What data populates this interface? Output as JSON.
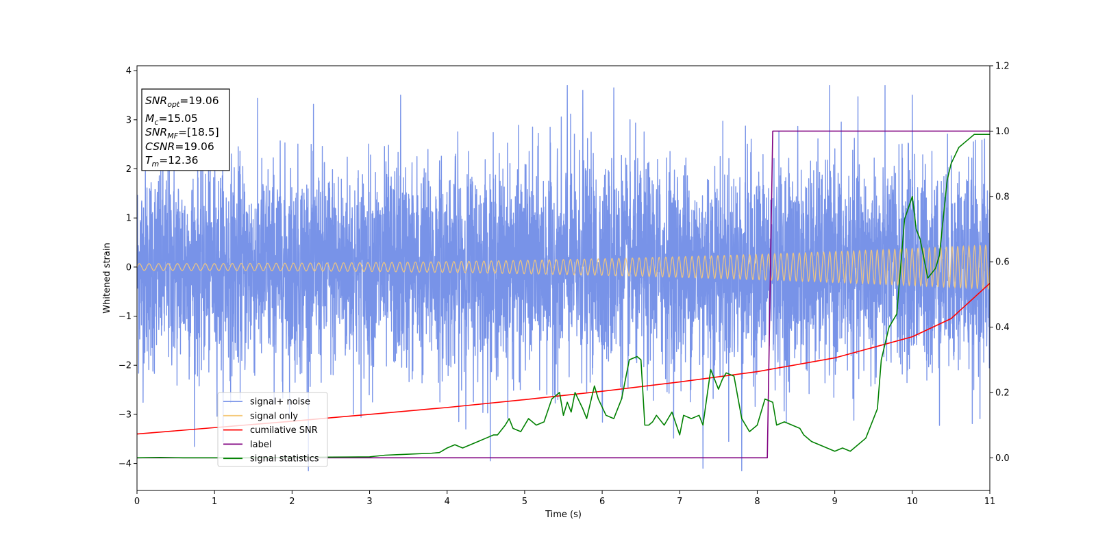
{
  "chart_data": {
    "type": "line",
    "xlabel": "Time (s)",
    "ylabel": "Whitened strain",
    "xlim": [
      0,
      11
    ],
    "ylim": [
      -4.55,
      4.1
    ],
    "y2lim": [
      -0.1,
      1.2
    ],
    "xticks": [
      0,
      1,
      2,
      3,
      4,
      5,
      6,
      7,
      8,
      9,
      10,
      11
    ],
    "yticks": [
      -4,
      -3,
      -2,
      -1,
      0,
      1,
      2,
      3,
      4
    ],
    "y2ticks": [
      "0.0",
      "0.2",
      "0.4",
      "0.6",
      "0.8",
      "1.0",
      "1.2"
    ],
    "grid": false,
    "legend_position": "lower-left",
    "annotation": [
      {
        "name": "SNR",
        "sub": "opt",
        "value": "=19.06"
      },
      {
        "name": "M",
        "sub": "c",
        "value": "=15.05"
      },
      {
        "name": "SNR",
        "sub": "MF",
        "value": "=[18.5]"
      },
      {
        "name": "CSNR",
        "sub": "",
        "value": "=19.06"
      },
      {
        "name": "T",
        "sub": "m",
        "value": "=12.36"
      }
    ],
    "series": [
      {
        "name": "signal+ noise",
        "color": "#7893e8",
        "axis": "left",
        "kind": "noise",
        "approx_std": 1.05,
        "approx_range": [
          -4.15,
          3.7
        ],
        "notable_peaks": [
          [
            3.4,
            3.5
          ],
          [
            5.55,
            3.7
          ],
          [
            5.75,
            3.6
          ],
          [
            6.15,
            3.65
          ],
          [
            7.3,
            -4.1
          ],
          [
            7.8,
            -4.15
          ],
          [
            10.0,
            3.5
          ]
        ]
      },
      {
        "name": "signal only",
        "color": "#f5c97a",
        "axis": "left",
        "kind": "chirp",
        "amplitude_start": 0.07,
        "amplitude_end": 0.45,
        "frequency_start_hz": 8,
        "frequency_end_hz": 14
      },
      {
        "name": "cumilative SNR",
        "color": "#ff0000",
        "axis": "left",
        "x": [
          0,
          1,
          2,
          3,
          4,
          5,
          6,
          7,
          8,
          9,
          10,
          10.5,
          11
        ],
        "y": [
          -3.4,
          -3.27,
          -3.14,
          -3.0,
          -2.86,
          -2.7,
          -2.53,
          -2.34,
          -2.13,
          -1.85,
          -1.42,
          -1.05,
          -0.33
        ]
      },
      {
        "name": "label",
        "color": "#800080",
        "axis": "right",
        "x": [
          0,
          8.13,
          8.2,
          11
        ],
        "y": [
          0.0,
          0.0,
          1.0,
          1.0
        ]
      },
      {
        "name": "signal statistics",
        "color": "#008000",
        "axis": "right",
        "x": [
          0,
          0.3,
          0.6,
          1.0,
          1.5,
          2.0,
          2.5,
          3.0,
          3.2,
          3.4,
          3.6,
          3.8,
          3.9,
          4.0,
          4.1,
          4.2,
          4.3,
          4.4,
          4.5,
          4.6,
          4.65,
          4.75,
          4.8,
          4.85,
          4.95,
          5.05,
          5.15,
          5.25,
          5.35,
          5.45,
          5.5,
          5.55,
          5.6,
          5.65,
          5.75,
          5.8,
          5.85,
          5.9,
          5.95,
          6.05,
          6.15,
          6.25,
          6.35,
          6.45,
          6.5,
          6.55,
          6.6,
          6.65,
          6.7,
          6.8,
          6.9,
          7.0,
          7.05,
          7.15,
          7.25,
          7.3,
          7.4,
          7.5,
          7.55,
          7.6,
          7.7,
          7.8,
          7.9,
          8.0,
          8.1,
          8.2,
          8.25,
          8.35,
          8.45,
          8.55,
          8.6,
          8.7,
          8.8,
          8.9,
          9.0,
          9.1,
          9.2,
          9.3,
          9.4,
          9.5,
          9.55,
          9.6,
          9.7,
          9.8,
          9.9,
          10.0,
          10.05,
          10.1,
          10.2,
          10.3,
          10.35,
          10.45,
          10.5,
          10.6,
          10.7,
          10.8,
          10.9,
          11.0
        ],
        "y": [
          0.0,
          0.001,
          0.0,
          0.0,
          0.0,
          0.001,
          0.002,
          0.003,
          0.008,
          0.01,
          0.012,
          0.014,
          0.016,
          0.03,
          0.04,
          0.03,
          0.04,
          0.05,
          0.06,
          0.07,
          0.07,
          0.1,
          0.12,
          0.09,
          0.08,
          0.12,
          0.1,
          0.11,
          0.18,
          0.2,
          0.13,
          0.17,
          0.14,
          0.2,
          0.15,
          0.12,
          0.17,
          0.22,
          0.18,
          0.13,
          0.12,
          0.18,
          0.3,
          0.31,
          0.3,
          0.1,
          0.1,
          0.11,
          0.13,
          0.1,
          0.14,
          0.07,
          0.13,
          0.12,
          0.13,
          0.1,
          0.27,
          0.21,
          0.24,
          0.26,
          0.25,
          0.12,
          0.08,
          0.1,
          0.18,
          0.17,
          0.1,
          0.11,
          0.1,
          0.09,
          0.07,
          0.05,
          0.04,
          0.03,
          0.02,
          0.03,
          0.02,
          0.04,
          0.06,
          0.12,
          0.15,
          0.3,
          0.4,
          0.44,
          0.73,
          0.8,
          0.7,
          0.67,
          0.55,
          0.58,
          0.62,
          0.85,
          0.9,
          0.95,
          0.97,
          0.99,
          0.99,
          0.99
        ]
      }
    ]
  }
}
